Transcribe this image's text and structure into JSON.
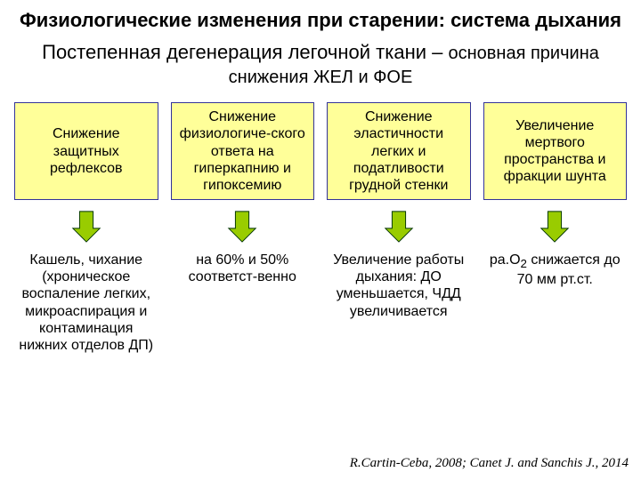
{
  "title": "Физиологические изменения при старении: система дыхания",
  "subtitle_html": "Постепенная дегенерация легочной ткани – <span style=\"font-size:20px\">основная причина снижения ЖЕЛ и ФОЕ</span>",
  "title_fontsize": 22,
  "subtitle_fontsize": 22,
  "box_fontsize": 16,
  "result_fontsize": 16,
  "citation_fontsize": 15,
  "colors": {
    "text": "#000000",
    "box_bg": "#ffff99",
    "box_border": "#333399",
    "arrow_fill": "#99cc00",
    "arrow_stroke": "#003300",
    "background": "#ffffff"
  },
  "arrow": {
    "width": 38,
    "height": 40
  },
  "boxes": [
    {
      "text": "Снижение защитных рефлексов"
    },
    {
      "text": "Снижение физиологиче-ского ответа на гиперкапнию и гипоксемию"
    },
    {
      "text": "Снижение эластичности легких и податливости грудной стенки"
    },
    {
      "text": "Увеличение мертвого пространства и фракции шунта"
    }
  ],
  "results": [
    {
      "text": "Кашель, чихание (хроническое воспаление легких, микроаспирация и контаминация нижних отделов ДП)"
    },
    {
      "text": "на 60% и 50% соответст-венно"
    },
    {
      "text": "Увеличение работы дыхания:  ДО уменьшается, ЧДД увеличивается"
    },
    {
      "html": "ра.О<sub>2</sub> снижается до 70 мм рт.ст."
    }
  ],
  "citation": "R.Cartin-Ceba, 2008; Canet J. and Sanchis J., 2014"
}
